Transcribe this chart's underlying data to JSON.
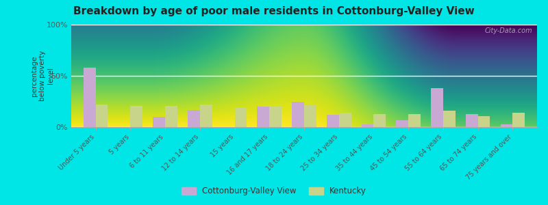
{
  "title": "Breakdown by age of poor male residents in Cottonburg-Valley View",
  "categories": [
    "Under 5 years",
    "5 years",
    "6 to 11 years",
    "12 to 14 years",
    "15 years",
    "16 and 17 years",
    "18 to 24 years",
    "25 to 34 years",
    "35 to 44 years",
    "45 to 54 years",
    "55 to 64 years",
    "65 to 74 years",
    "75 years and over"
  ],
  "city_values": [
    58,
    0,
    10,
    17,
    0,
    20,
    25,
    12,
    3,
    7,
    38,
    13,
    3
  ],
  "kentucky_values": [
    22,
    21,
    21,
    22,
    19,
    20,
    22,
    14,
    13,
    13,
    16,
    11,
    14
  ],
  "city_color": "#c9a8d4",
  "kentucky_color": "#c8d48a",
  "bg_top": "#f5f5e8",
  "bg_bottom": "#d6e8c0",
  "outer_background": "#00e5e5",
  "ylabel": "percentage\nbelow poverty\nlevel",
  "ylim": [
    0,
    100
  ],
  "yticks": [
    0,
    50,
    100
  ],
  "ytick_labels": [
    "0%",
    "50%",
    "100%"
  ],
  "legend_city": "Cottonburg-Valley View",
  "legend_kentucky": "Kentucky",
  "bar_width": 0.35,
  "watermark": "City-Data.com"
}
